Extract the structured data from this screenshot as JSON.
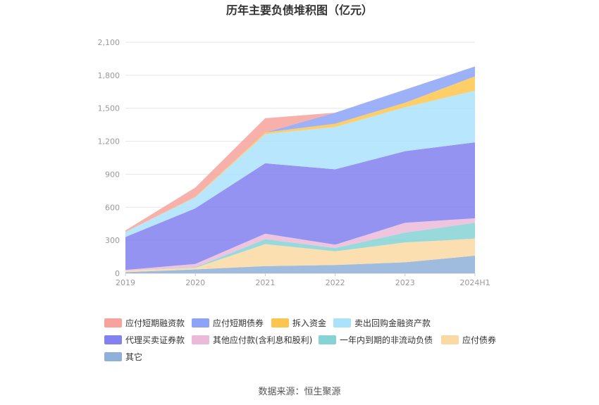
{
  "chart_data": {
    "type": "area",
    "stacked": true,
    "title": "历年主要负债堆积图（亿元）",
    "xlabel": "",
    "ylabel": "",
    "categories": [
      "2019",
      "2020",
      "2021",
      "2022",
      "2023",
      "2024H1"
    ],
    "yticks": [
      "0",
      "300",
      "600",
      "900",
      "1,200",
      "1,500",
      "1,800",
      "2,100"
    ],
    "ylim": [
      0,
      2100
    ],
    "grid": true,
    "legend_position": "bottom",
    "series": [
      {
        "name": "其它",
        "color": "#8eb0d9",
        "values": [
          10,
          35,
          65,
          75,
          100,
          160
        ]
      },
      {
        "name": "应付债券",
        "color": "#fbd9a3",
        "values": [
          15,
          15,
          200,
          125,
          180,
          155
        ]
      },
      {
        "name": "一年内到期的非流动负债",
        "color": "#86d3d6",
        "values": [
          0,
          5,
          45,
          30,
          90,
          145
        ]
      },
      {
        "name": "其他应付款(含利息和股利)",
        "color": "#ecbad9",
        "values": [
          5,
          30,
          50,
          30,
          90,
          40
        ]
      },
      {
        "name": "代理买卖证券款",
        "color": "#8380f0",
        "values": [
          300,
          505,
          640,
          685,
          650,
          690
        ]
      },
      {
        "name": "卖出回购金融资产款",
        "color": "#abe2fb",
        "values": [
          45,
          100,
          265,
          385,
          400,
          470
        ]
      },
      {
        "name": "拆入资金",
        "color": "#fec54e",
        "values": [
          0,
          5,
          15,
          30,
          40,
          130
        ]
      },
      {
        "name": "应付短期债券",
        "color": "#8ca3f7",
        "values": [
          0,
          0,
          0,
          100,
          120,
          90
        ]
      },
      {
        "name": "应付短期融资款",
        "color": "#f7a29b",
        "values": [
          15,
          85,
          130,
          0,
          0,
          0
        ]
      }
    ],
    "legend": [
      {
        "name": "应付短期融资款",
        "color": "#f7a29b"
      },
      {
        "name": "应付短期债券",
        "color": "#8ca3f7"
      },
      {
        "name": "拆入资金",
        "color": "#fec54e"
      },
      {
        "name": "卖出回购金融资产款",
        "color": "#abe2fb"
      },
      {
        "name": "代理买卖证券款",
        "color": "#8380f0"
      },
      {
        "name": "其他应付款(含利息和股利)",
        "color": "#ecbad9"
      },
      {
        "name": "一年内到期的非流动负债",
        "color": "#86d3d6"
      },
      {
        "name": "应付债券",
        "color": "#fbd9a3"
      },
      {
        "name": "其它",
        "color": "#8eb0d9"
      }
    ]
  },
  "source": "数据来源：恒生聚源"
}
